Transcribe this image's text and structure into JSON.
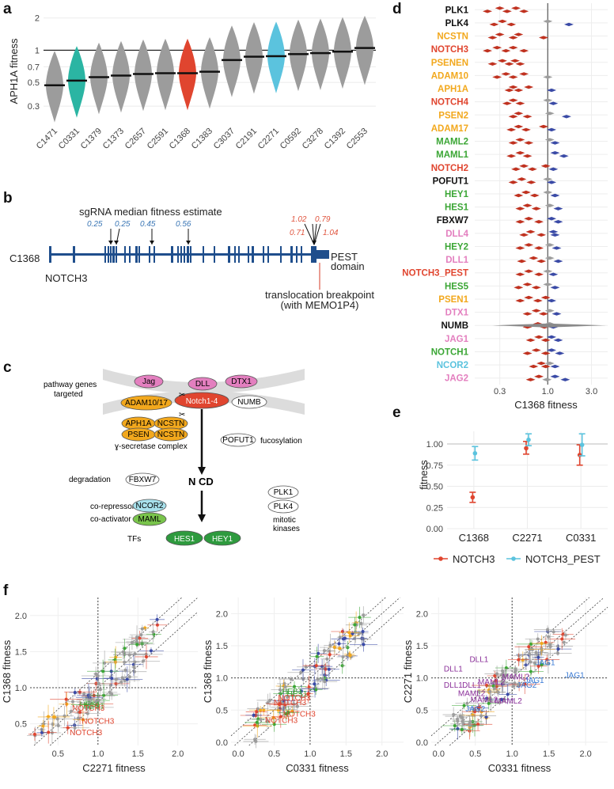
{
  "panel_labels": {
    "a": "a",
    "b": "b",
    "c": "c",
    "d": "d",
    "e": "e",
    "f": "f"
  },
  "colors": {
    "red": "#e0452f",
    "teal": "#2bb5a3",
    "cyan": "#5bc3de",
    "gray": "#9c9c9c",
    "navy": "#1f4e8c",
    "dark_red": "#c0311f",
    "blue_pt": "#3a4aa6",
    "orange": "#f2a81d",
    "green": "#3ba635",
    "pink": "#e37fbf",
    "purple": "#8a2f99"
  },
  "chart_data": [
    {
      "panel": "a",
      "type": "violin",
      "ylabel": "APH1A fitness",
      "yticks": [
        "0.3",
        "0.5",
        "0.7",
        "1",
        "2"
      ],
      "ytick_values": [
        0.3,
        0.5,
        0.7,
        1,
        2
      ],
      "categories": [
        "C1471",
        "C0331",
        "C1379",
        "C1373",
        "C2657",
        "C2591",
        "C1368",
        "C1383",
        "C3037",
        "C2191",
        "C2271",
        "C0592",
        "C3278",
        "C1392",
        "C2553"
      ],
      "medians": [
        0.47,
        0.52,
        0.56,
        0.58,
        0.6,
        0.61,
        0.61,
        0.63,
        0.81,
        0.87,
        0.88,
        0.92,
        0.94,
        0.97,
        1.05
      ],
      "highlight": {
        "C0331": "teal",
        "C1368": "red",
        "C2271": "cyan"
      }
    },
    {
      "panel": "d",
      "type": "forest",
      "xlabel": "C1368 fitness",
      "xticks": [
        "0.3",
        "1.0",
        "3.0"
      ],
      "xtick_values": [
        0.3,
        1.0,
        3.0
      ],
      "genes": [
        {
          "name": "PLK1",
          "color": "black",
          "values": [
            0.22,
            0.3,
            0.36,
            0.45,
            0.55
          ]
        },
        {
          "name": "PLK4",
          "color": "black",
          "values": [
            0.26,
            0.32,
            0.4,
            1.0,
            1.7
          ]
        },
        {
          "name": "NCSTN",
          "color": "orange",
          "values": [
            0.25,
            0.3,
            0.42,
            0.48,
            0.9
          ]
        },
        {
          "name": "NOTCH3",
          "color": "red",
          "values": [
            0.22,
            0.28,
            0.35,
            0.42,
            0.55
          ]
        },
        {
          "name": "PSENEN",
          "color": "orange",
          "values": [
            0.25,
            0.32,
            0.38,
            0.44,
            0.5
          ]
        },
        {
          "name": "ADAM10",
          "color": "orange",
          "values": [
            0.28,
            0.35,
            0.42,
            0.55,
            1.0
          ]
        },
        {
          "name": "APH1A",
          "color": "orange",
          "values": [
            0.38,
            0.42,
            0.48,
            0.62,
            1.1
          ]
        },
        {
          "name": "NOTCH4",
          "color": "red",
          "values": [
            0.36,
            0.42,
            0.5,
            1.0,
            1.15
          ]
        },
        {
          "name": "PSEN2",
          "color": "orange",
          "values": [
            0.42,
            0.48,
            0.6,
            1.05,
            1.6
          ]
        },
        {
          "name": "ADAM17",
          "color": "orange",
          "values": [
            0.4,
            0.48,
            0.58,
            0.9,
            1.1
          ]
        },
        {
          "name": "MAML2",
          "color": "green",
          "values": [
            0.42,
            0.5,
            0.62,
            1.05,
            1.2
          ]
        },
        {
          "name": "MAML1",
          "color": "green",
          "values": [
            0.4,
            0.5,
            0.6,
            1.2,
            1.5
          ]
        },
        {
          "name": "NOTCH2",
          "color": "red",
          "values": [
            0.45,
            0.55,
            0.68,
            0.95,
            1.15
          ]
        },
        {
          "name": "POFUT1",
          "color": "black",
          "values": [
            0.42,
            0.52,
            0.66,
            1.0,
            1.1
          ]
        },
        {
          "name": "HEY1",
          "color": "green",
          "values": [
            0.48,
            0.58,
            0.72,
            1.0,
            1.2
          ]
        },
        {
          "name": "HES1",
          "color": "green",
          "values": [
            0.5,
            0.6,
            0.75,
            1.05,
            1.3
          ]
        },
        {
          "name": "FBXW7",
          "color": "black",
          "values": [
            0.5,
            0.62,
            0.8,
            1.1,
            1.3
          ]
        },
        {
          "name": "DLL4",
          "color": "pink",
          "values": [
            0.55,
            0.65,
            0.85,
            1.15,
            1.2
          ]
        },
        {
          "name": "HEY2",
          "color": "green",
          "values": [
            0.5,
            0.62,
            0.8,
            1.05,
            1.25
          ]
        },
        {
          "name": "DLL1",
          "color": "pink",
          "values": [
            0.52,
            0.7,
            0.85,
            1.05,
            1.3
          ]
        },
        {
          "name": "NOTCH3_PEST",
          "color": "red",
          "values": [
            0.5,
            0.62,
            0.8,
            1.0,
            1.15
          ]
        },
        {
          "name": "HES5",
          "color": "green",
          "values": [
            0.48,
            0.6,
            0.75,
            1.0,
            1.2
          ]
        },
        {
          "name": "PSEN1",
          "color": "orange",
          "values": [
            0.5,
            0.62,
            0.78,
            0.95,
            1.1
          ]
        },
        {
          "name": "DTX1",
          "color": "pink",
          "values": [
            0.6,
            0.75,
            0.9,
            1.05,
            1.25
          ]
        },
        {
          "name": "NUMB",
          "color": "black",
          "values": [
            0.6,
            0.78,
            0.92,
            1.05,
            1.15
          ]
        },
        {
          "name": "JAG1",
          "color": "pink",
          "values": [
            0.65,
            0.8,
            0.95,
            1.1,
            1.3
          ]
        },
        {
          "name": "NOTCH1",
          "color": "green",
          "values": [
            0.6,
            0.75,
            0.95,
            1.1,
            1.35
          ]
        },
        {
          "name": "NCOR2",
          "color": "cyan",
          "values": [
            0.7,
            0.85,
            0.95,
            1.05,
            1.2
          ]
        },
        {
          "name": "JAG2",
          "color": "pink",
          "values": [
            0.65,
            0.8,
            0.98,
            1.2,
            1.55
          ]
        }
      ]
    },
    {
      "panel": "e",
      "type": "errorbar",
      "ylabel": "fitness",
      "yticks": [
        "0.00",
        "0.25",
        "0.50",
        "0.75",
        "1.00"
      ],
      "ytick_values": [
        0,
        0.25,
        0.5,
        0.75,
        1.0
      ],
      "ylim": [
        0,
        1.15
      ],
      "categories": [
        "C1368",
        "C2271",
        "C0331"
      ],
      "series": [
        {
          "name": "NOTCH3",
          "color": "red",
          "values": [
            0.37,
            0.95,
            0.87
          ],
          "lo": [
            0.31,
            0.88,
            0.75
          ],
          "hi": [
            0.43,
            1.03,
            0.99
          ]
        },
        {
          "name": "NOTCH3_PEST",
          "color": "cyan",
          "values": [
            0.89,
            1.05,
            0.99
          ],
          "lo": [
            0.81,
            0.98,
            0.86
          ],
          "hi": [
            0.97,
            1.12,
            1.12
          ]
        }
      ]
    },
    {
      "panel": "f",
      "type": "scatter",
      "plots": [
        {
          "xlabel": "C2271 fitness",
          "ylabel": "C1368 fitness",
          "xticks": [
            "0.5",
            "1.0",
            "1.5",
            "2.0"
          ],
          "yticks": [
            "0.5",
            "1.0",
            "1.5",
            "2.0"
          ]
        },
        {
          "xlabel": "C0331 fitness",
          "ylabel": "C1368 fitness",
          "xticks": [
            "0.0",
            "0.5",
            "1.0",
            "1.5",
            "2.0"
          ],
          "yticks": [
            "0.0",
            "0.5",
            "1.0",
            "1.5",
            "2.0"
          ]
        },
        {
          "xlabel": "C0331 fitness",
          "ylabel": "C2271 fitness",
          "xticks": [
            "0.0",
            "0.5",
            "1.0",
            "1.5",
            "2.0"
          ],
          "yticks": [
            "0.0",
            "0.5",
            "1.0",
            "1.5",
            "2.0"
          ]
        }
      ],
      "labels1": [
        {
          "text": "HES1",
          "color": "green",
          "x": 0.9,
          "y": 0.73
        },
        {
          "text": "HES1",
          "color": "green",
          "x": 0.95,
          "y": 0.71
        },
        {
          "text": "NOTCH3",
          "color": "red",
          "x": 0.88,
          "y": 0.68
        },
        {
          "text": "NOTCH3",
          "color": "red",
          "x": 1.0,
          "y": 0.5
        },
        {
          "text": "NOTCH3",
          "color": "red",
          "x": 0.85,
          "y": 0.34
        }
      ],
      "labels2": [
        {
          "text": "HES1",
          "color": "green",
          "x": 0.75,
          "y": 0.75
        },
        {
          "text": "HES1",
          "color": "green",
          "x": 0.82,
          "y": 0.71
        },
        {
          "text": "NOTCH3",
          "color": "red",
          "x": 0.78,
          "y": 0.65
        },
        {
          "text": "NOTCH3",
          "color": "red",
          "x": 0.72,
          "y": 0.58
        },
        {
          "text": "NOTCH3",
          "color": "red",
          "x": 0.85,
          "y": 0.4
        },
        {
          "text": "NOTCH3",
          "color": "red",
          "x": 0.6,
          "y": 0.3
        }
      ],
      "labels3": [
        {
          "text": "DLL1",
          "color": "purple",
          "x": 0.2,
          "y": 1.1
        },
        {
          "text": "DLL1",
          "color": "purple",
          "x": 0.55,
          "y": 1.25
        },
        {
          "text": "DLL1",
          "color": "purple",
          "x": 0.2,
          "y": 0.85
        },
        {
          "text": "DLL1",
          "color": "purple",
          "x": 0.45,
          "y": 0.85
        },
        {
          "text": "MAML2",
          "color": "purple",
          "x": 0.72,
          "y": 0.9
        },
        {
          "text": "MAML2",
          "color": "purple",
          "x": 1.05,
          "y": 0.98
        },
        {
          "text": "MAML2",
          "color": "purple",
          "x": 0.45,
          "y": 0.72
        },
        {
          "text": "MAML2",
          "color": "purple",
          "x": 0.62,
          "y": 0.62
        },
        {
          "text": "MAML2",
          "color": "purple",
          "x": 0.95,
          "y": 0.6
        },
        {
          "text": "JAG1",
          "color": "blue",
          "x": 1.45,
          "y": 1.2
        },
        {
          "text": "JAG1",
          "color": "blue",
          "x": 1.85,
          "y": 1.0
        },
        {
          "text": "JAG2",
          "color": "blue",
          "x": 1.2,
          "y": 0.85
        },
        {
          "text": "JAG2",
          "color": "blue",
          "x": 0.5,
          "y": 0.48
        },
        {
          "text": "JAG1",
          "color": "blue",
          "x": 1.3,
          "y": 0.92
        }
      ]
    }
  ],
  "panel_b": {
    "title": "sgRNA median fitness estimate",
    "estimates": [
      "0.25",
      "0.25",
      "0.45",
      "0.56"
    ],
    "right_estimates": [
      "1.02",
      "0.79",
      "0.71",
      "1.04"
    ],
    "sample": "C1368",
    "gene": "NOTCH3",
    "pest": "PEST\ndomain",
    "pest_line1": "PEST",
    "pest_line2": "domain",
    "breakpoint_line1": "translocation breakpoint",
    "breakpoint_line2": "(with MEMO1P4)"
  },
  "panel_c": {
    "pathway_label_1": "pathway genes",
    "pathway_label_2": "targeted",
    "jag": "Jag",
    "dll": "DLL",
    "dtx1": "DTX1",
    "adam": "ADAM10/17",
    "notch": "Notch1-4",
    "numb": "NUMB",
    "aph1a": "APH1A",
    "ncstn1": "NCSTN",
    "psen": "PSEN",
    "ncstn2": "NCSTN",
    "gamma": "ɣ-secretase complex",
    "pofut1": "POFUT1",
    "fucosylation": "fucosylation",
    "degradation": "degradation",
    "fbxw7": "FBXW7",
    "ncd": "N CD",
    "plk1": "PLK1",
    "plk4": "PLK4",
    "corepressor": "co-repressor",
    "ncor2": "NCOR2",
    "coactivator": "co-activator",
    "maml": "MAML",
    "mitotic1": "mitotic",
    "mitotic2": "kinases",
    "tfs": "TFs",
    "hes1": "HES1",
    "hey1": "HEY1"
  }
}
